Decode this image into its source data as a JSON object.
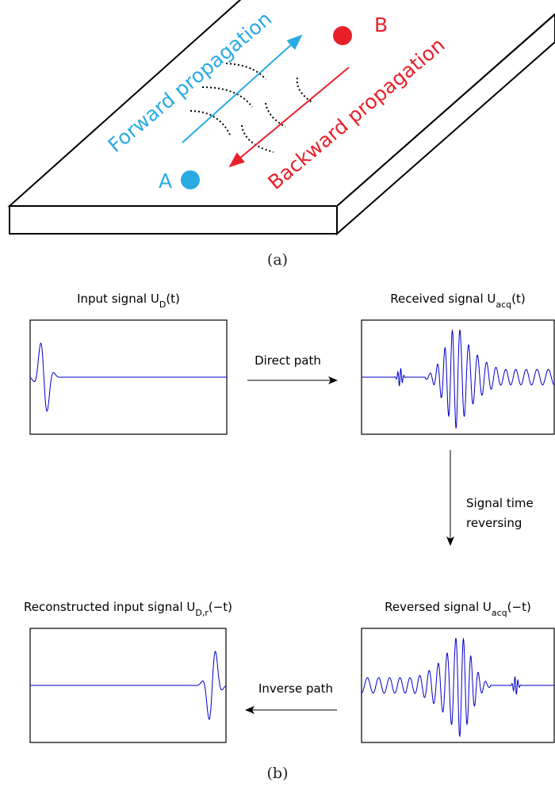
{
  "plate": {
    "forward_label": "Forward propagation",
    "backward_label": "Backward propagation",
    "point_a": "A",
    "point_b": "B",
    "caption": "(a)"
  },
  "panels": [
    {
      "text": "Input signal U",
      "subscript": "D",
      "suffix": "(t)"
    },
    {
      "text": "Received signal U",
      "subscript": "acq",
      "suffix": "(t)"
    },
    {
      "text": "Reconstructed input signal U",
      "subscript": "D,r",
      "suffix": "(−t)"
    },
    {
      "text": "Reversed signal U",
      "subscript": "acq",
      "suffix": "(−t)"
    }
  ],
  "arrows": {
    "direct": "Direct path",
    "reversing": [
      "Signal time",
      "reversing"
    ],
    "inverse": "Inverse path"
  },
  "caption": "(b)"
}
